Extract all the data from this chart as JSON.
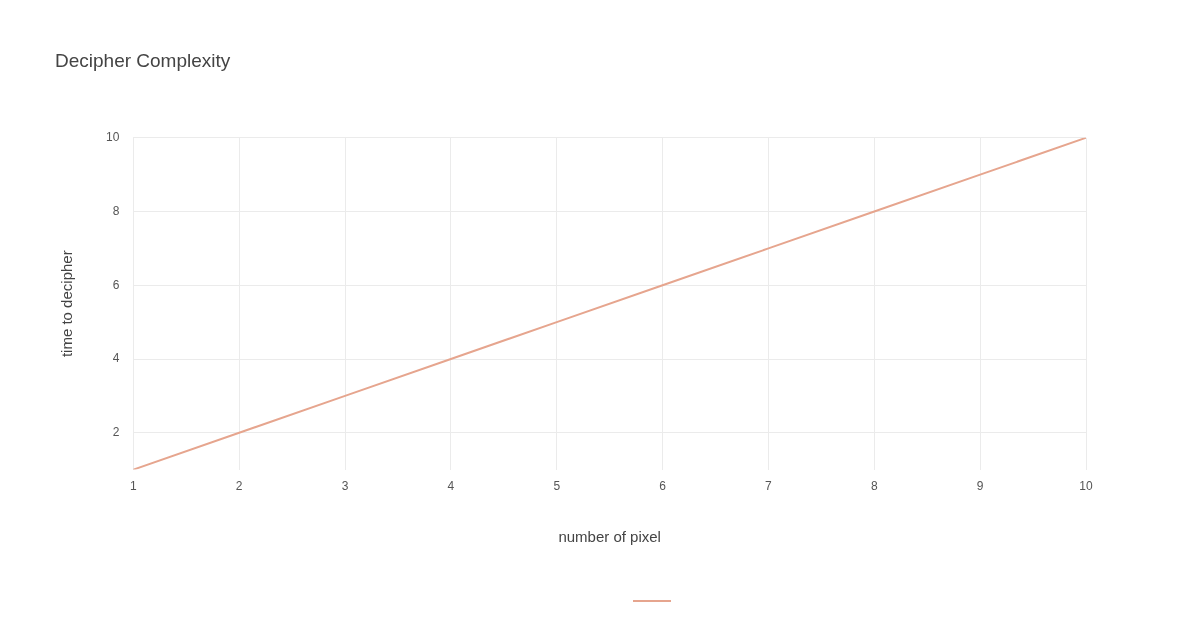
{
  "chart_data": {
    "type": "line",
    "title": "Decipher Complexity",
    "xlabel": "number of pixel",
    "ylabel": "time to decipher",
    "x": [
      1,
      2,
      3,
      4,
      5,
      6,
      7,
      8,
      9,
      10
    ],
    "series": [
      {
        "color": "#e6a58e",
        "values": [
          1,
          2,
          3,
          4,
          5,
          6,
          7,
          8,
          9,
          10
        ]
      }
    ],
    "xlim": [
      1,
      10
    ],
    "xticks": [
      1,
      2,
      3,
      4,
      5,
      6,
      7,
      8,
      9,
      10
    ],
    "ylim": [
      1,
      10
    ],
    "yticks": [
      2,
      4,
      6,
      8,
      10
    ],
    "grid": true,
    "marker": "none",
    "line_style": "solid"
  }
}
